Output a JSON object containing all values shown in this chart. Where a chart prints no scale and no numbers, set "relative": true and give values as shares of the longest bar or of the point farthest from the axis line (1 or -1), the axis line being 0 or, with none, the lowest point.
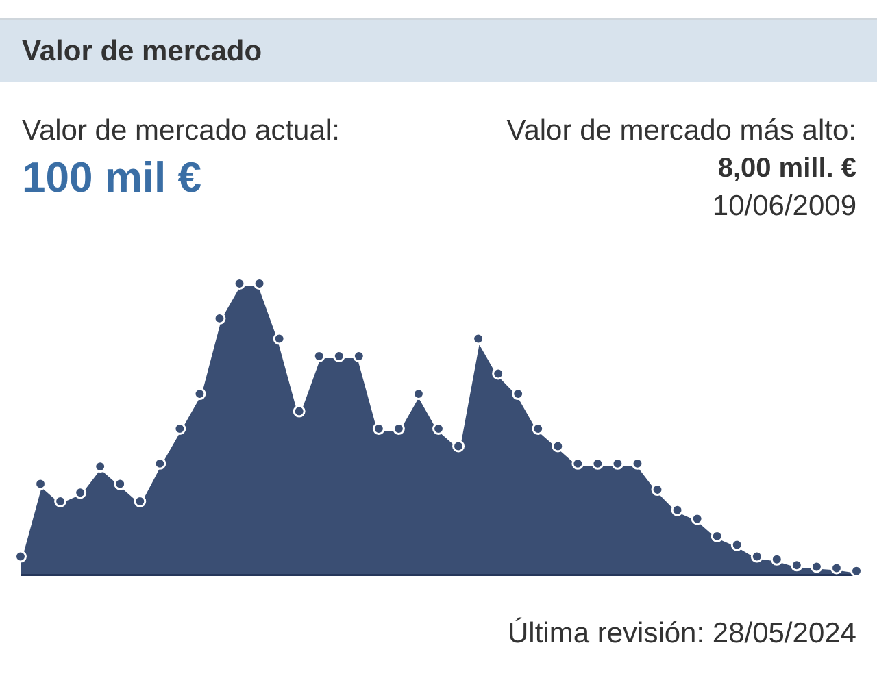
{
  "chart_data": {
    "type": "area",
    "title": "Valor de mercado",
    "annotations": [
      "Valor de mercado actual:",
      "100 mil €",
      "Valor de mercado más alto:",
      "8,00 mill. €",
      "10/06/2009",
      "Última revisión: 28/05/2024"
    ],
    "categories": [
      null,
      null,
      null,
      null,
      null,
      null,
      null,
      null,
      null,
      null,
      null,
      null,
      null,
      null,
      null,
      null,
      null,
      null,
      null,
      null,
      null,
      null,
      null,
      null,
      null,
      null,
      null,
      null,
      null,
      null,
      null,
      null,
      null,
      null,
      null,
      null,
      null,
      null,
      null,
      null,
      null,
      null,
      null
    ],
    "values": [
      0.06,
      0.31,
      0.25,
      0.28,
      0.37,
      0.31,
      0.25,
      0.38,
      0.5,
      0.62,
      0.88,
      1,
      1,
      0.81,
      0.56,
      0.75,
      0.75,
      0.75,
      0.5,
      0.5,
      0.62,
      0.5,
      0.44,
      0.81,
      0.69,
      0.62,
      0.5,
      0.44,
      0.38,
      0.38,
      0.38,
      0.38,
      0.29,
      0.22,
      0.19,
      0.13,
      0.1,
      0.06,
      0.05,
      0.03,
      0.025,
      0.02,
      0.01
    ],
    "color": "#3a4e73",
    "relative": true,
    "marker": "circle",
    "line_style": "solid"
  }
}
